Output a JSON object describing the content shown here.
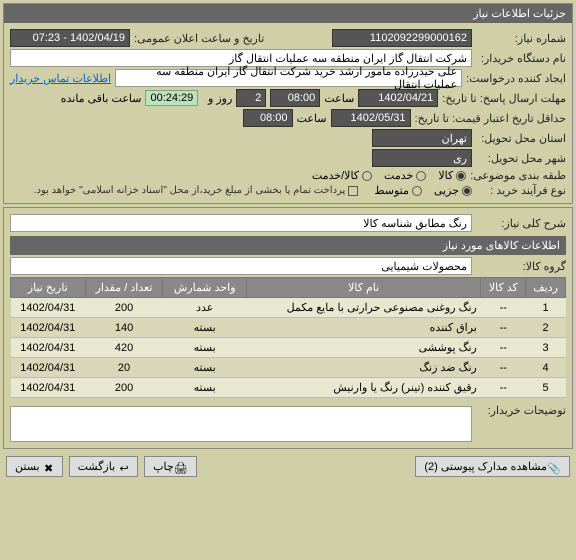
{
  "header": {
    "title": "جزئیات اطلاعات نیاز"
  },
  "fields": {
    "need_no_label": "شماره نیاز:",
    "need_no": "1102092299000162",
    "announce_label": "تاریخ و ساعت اعلان عمومی:",
    "announce_value": "1402/04/19 - 07:23",
    "buyer_label": "نام دستگاه خریدار:",
    "buyer": "شرکت انتقال گاز ایران منطقه سه عملیات انتقال گاز",
    "creator_label": "ایجاد کننده درخواست:",
    "creator": "علی حیدرزاده مامور ارشد خرید شرکت انتقال گاز ایران منطقه سه عملیات انتقال",
    "contact_link": "اطلاعات تماس خریدار",
    "deadline_label": "مهلت ارسال پاسخ: تا تاریخ:",
    "deadline_date": "1402/04/21",
    "deadline_time_label": "ساعت",
    "deadline_time": "08:00",
    "remain_day_label": "روز و",
    "remain_day": "2",
    "remain_time": "00:24:29",
    "remain_suffix": "ساعت باقی مانده",
    "validity_label": "حداقل تاریخ اعتبار قیمت: تا تاریخ:",
    "validity_date": "1402/05/31",
    "validity_time_label": "ساعت",
    "validity_time": "08:00",
    "province_label": "استان محل تحویل:",
    "province": "تهران",
    "city_label": "شهر محل تحویل:",
    "city": "ری",
    "category_label": "طبقه بندی موضوعی:",
    "cat_goods": "کالا",
    "cat_service": "خدمت",
    "cat_both": "کالا/خدمت",
    "process_label": "نوع فرآیند خرید :",
    "proc_small": "جزیی",
    "proc_medium": "متوسط",
    "payment_note": "پرداخت تمام یا بخشی از مبلغ خرید،از محل \"اسناد خزانه اسلامی\" خواهد بود.",
    "desc_label": "شرح کلی نیاز:",
    "desc": "رنگ مطابق شناسه کالا",
    "items_header": "اطلاعات کالاهای مورد نیاز",
    "group_label": "گروه کالا:",
    "group": "محصولات شیمیایی",
    "notes_label": "توضیحات خریدار:"
  },
  "table": {
    "headers": [
      "ردیف",
      "کد کالا",
      "نام کالا",
      "واحد شمارش",
      "تعداد / مقدار",
      "تاریخ نیاز"
    ],
    "rows": [
      [
        "1",
        "--",
        "رنگ روغنی مصنوعی حرارتی با مایع مکمل",
        "عدد",
        "200",
        "1402/04/31"
      ],
      [
        "2",
        "--",
        "براق کننده",
        "بسته",
        "140",
        "1402/04/31"
      ],
      [
        "3",
        "--",
        "رنگ پوششی",
        "بسته",
        "420",
        "1402/04/31"
      ],
      [
        "4",
        "--",
        "رنگ ضد زنگ",
        "بسته",
        "20",
        "1402/04/31"
      ],
      [
        "5",
        "--",
        "رقیق کننده (تینر) رنگ یا وارنیش",
        "بسته",
        "200",
        "1402/04/31"
      ]
    ]
  },
  "footer": {
    "attachments": "مشاهده مدارک پیوستی (2)",
    "print": "چاپ",
    "back": "بازگشت",
    "close": "بستن"
  }
}
